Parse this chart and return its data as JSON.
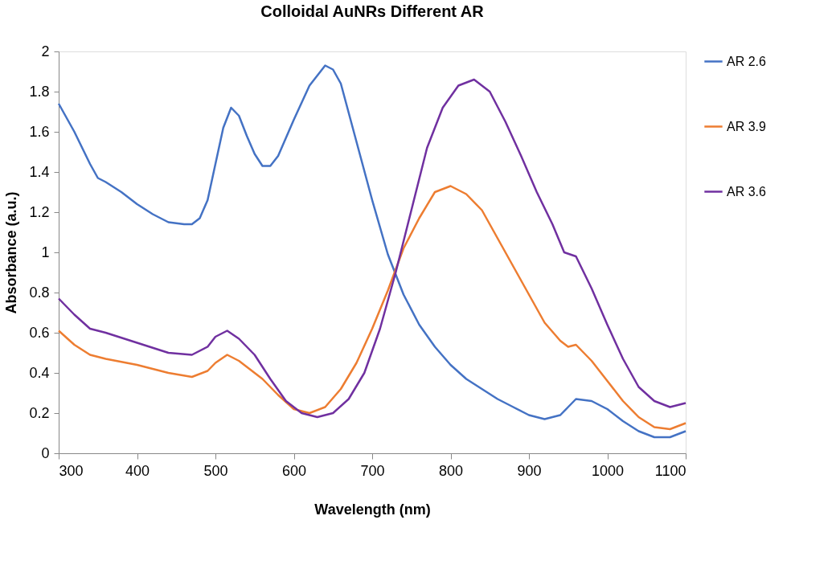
{
  "chart_data": {
    "type": "line",
    "title": "Colloidal AuNRs Different AR",
    "xlabel": "Wavelength (nm)",
    "ylabel": "Absorbance (a.u.)",
    "xlim": [
      300,
      1100
    ],
    "xticks": [
      300,
      400,
      500,
      600,
      700,
      800,
      900,
      1000,
      1100
    ],
    "ylim": [
      0,
      2
    ],
    "yticks": [
      0,
      0.2,
      0.4,
      0.6,
      0.8,
      1,
      1.2,
      1.4,
      1.6,
      1.8,
      2
    ],
    "grid": false,
    "legend": "right",
    "marker": "none",
    "line_style": "solid",
    "series": [
      {
        "name": "AR 2.6",
        "color": "#4472c4",
        "x": [
          300,
          320,
          340,
          350,
          360,
          380,
          400,
          420,
          440,
          460,
          470,
          480,
          490,
          500,
          510,
          520,
          530,
          540,
          550,
          560,
          570,
          580,
          600,
          620,
          640,
          650,
          660,
          680,
          700,
          720,
          740,
          760,
          780,
          800,
          820,
          840,
          860,
          880,
          900,
          920,
          940,
          950,
          960,
          980,
          1000,
          1020,
          1040,
          1060,
          1080,
          1100
        ],
        "values": [
          1.74,
          1.6,
          1.44,
          1.37,
          1.35,
          1.3,
          1.24,
          1.19,
          1.15,
          1.14,
          1.14,
          1.17,
          1.26,
          1.44,
          1.62,
          1.72,
          1.68,
          1.58,
          1.49,
          1.43,
          1.43,
          1.48,
          1.66,
          1.83,
          1.93,
          1.91,
          1.84,
          1.55,
          1.26,
          0.99,
          0.79,
          0.64,
          0.53,
          0.44,
          0.37,
          0.32,
          0.27,
          0.23,
          0.19,
          0.17,
          0.19,
          0.23,
          0.27,
          0.26,
          0.22,
          0.16,
          0.11,
          0.08,
          0.08,
          0.11
        ]
      },
      {
        "name": "AR 3.9",
        "color": "#ed7d31",
        "x": [
          300,
          320,
          340,
          360,
          400,
          440,
          470,
          490,
          500,
          515,
          530,
          560,
          580,
          600,
          620,
          640,
          660,
          680,
          700,
          720,
          740,
          760,
          780,
          800,
          820,
          840,
          860,
          880,
          900,
          920,
          940,
          950,
          960,
          980,
          1000,
          1020,
          1040,
          1060,
          1080,
          1100
        ],
        "values": [
          0.61,
          0.54,
          0.49,
          0.47,
          0.44,
          0.4,
          0.38,
          0.41,
          0.45,
          0.49,
          0.46,
          0.37,
          0.29,
          0.22,
          0.2,
          0.23,
          0.32,
          0.45,
          0.62,
          0.81,
          1.02,
          1.17,
          1.3,
          1.33,
          1.29,
          1.21,
          1.07,
          0.93,
          0.79,
          0.65,
          0.56,
          0.53,
          0.54,
          0.46,
          0.36,
          0.26,
          0.18,
          0.13,
          0.12,
          0.15
        ]
      },
      {
        "name": "AR 3.6",
        "color": "#7030a0",
        "x": [
          300,
          320,
          340,
          360,
          400,
          440,
          470,
          490,
          500,
          515,
          530,
          550,
          570,
          590,
          610,
          630,
          650,
          670,
          690,
          710,
          730,
          750,
          770,
          790,
          810,
          830,
          850,
          870,
          890,
          910,
          930,
          945,
          960,
          980,
          1000,
          1020,
          1040,
          1060,
          1080,
          1100
        ],
        "values": [
          0.77,
          0.69,
          0.62,
          0.6,
          0.55,
          0.5,
          0.49,
          0.53,
          0.58,
          0.61,
          0.57,
          0.49,
          0.37,
          0.26,
          0.2,
          0.18,
          0.2,
          0.27,
          0.4,
          0.62,
          0.9,
          1.21,
          1.52,
          1.72,
          1.83,
          1.86,
          1.8,
          1.65,
          1.48,
          1.3,
          1.14,
          1.0,
          0.98,
          0.82,
          0.64,
          0.47,
          0.33,
          0.26,
          0.23,
          0.25
        ]
      }
    ]
  }
}
